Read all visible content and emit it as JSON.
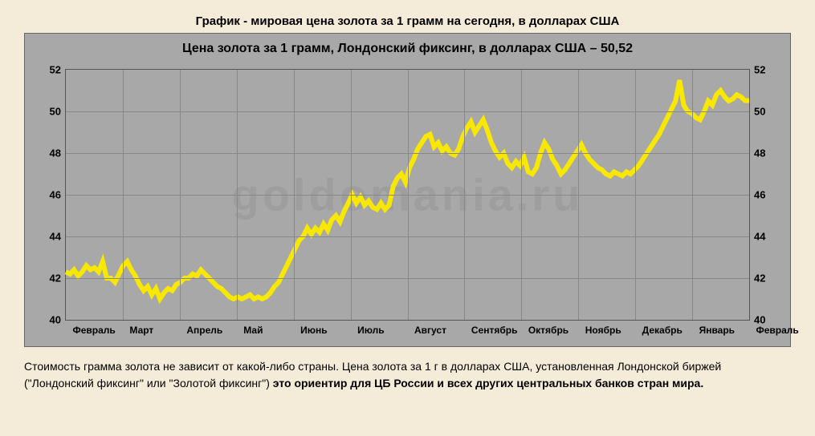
{
  "page_title": "График - мировая цена золота за 1 грамм на сегодня, в долларах США",
  "chart": {
    "type": "line",
    "inner_title": "Цена золота за 1 грамм,  Лондонский фиксинг,  в долларах США  –  50,52",
    "watermark": "goldomania.ru",
    "background_color": "#a8a8a8",
    "grid_color": "#888888",
    "line_color": "#f8e800",
    "line_width": 2,
    "ylim": [
      40,
      52
    ],
    "ytick_step": 2,
    "yticks": [
      40,
      42,
      44,
      46,
      48,
      50,
      52
    ],
    "x_labels": [
      "Февраль",
      "Март",
      "Апрель",
      "Май",
      "Июнь",
      "Июль",
      "Август",
      "Сентябрь",
      "Октябрь",
      "Ноябрь",
      "Декабрь",
      "Январь",
      "Февраль"
    ],
    "x_count": 13,
    "series": [
      42.3,
      42.2,
      42.4,
      42.1,
      42.3,
      42.6,
      42.4,
      42.5,
      42.3,
      42.8,
      42.0,
      42.0,
      41.8,
      42.2,
      42.6,
      42.8,
      42.4,
      42.1,
      41.7,
      41.4,
      41.6,
      41.2,
      41.5,
      41.0,
      41.3,
      41.5,
      41.4,
      41.7,
      41.8,
      42.0,
      42.0,
      42.2,
      42.1,
      42.4,
      42.2,
      42.0,
      41.8,
      41.6,
      41.5,
      41.3,
      41.1,
      41.0,
      41.1,
      41.0,
      41.1,
      41.2,
      41.0,
      41.1,
      41.0,
      41.1,
      41.3,
      41.6,
      41.8,
      42.2,
      42.6,
      43.0,
      43.4,
      43.8,
      44.0,
      44.4,
      44.1,
      44.4,
      44.2,
      44.6,
      44.3,
      44.8,
      45.0,
      44.7,
      45.2,
      45.6,
      46.0,
      45.6,
      45.9,
      45.5,
      45.7,
      45.4,
      45.3,
      45.6,
      45.3,
      45.5,
      46.4,
      46.8,
      47.0,
      46.6,
      47.3,
      47.7,
      48.2,
      48.5,
      48.8,
      48.9,
      48.3,
      48.5,
      48.1,
      48.3,
      48.0,
      47.9,
      48.2,
      48.8,
      49.2,
      49.5,
      49.0,
      49.3,
      49.6,
      49.1,
      48.5,
      48.1,
      47.8,
      48.0,
      47.5,
      47.3,
      47.6,
      47.4,
      47.8,
      47.1,
      47.0,
      47.3,
      48.0,
      48.5,
      48.2,
      47.7,
      47.4,
      47.0,
      47.2,
      47.5,
      47.8,
      48.1,
      48.4,
      48.0,
      47.7,
      47.5,
      47.3,
      47.2,
      47.0,
      46.9,
      47.1,
      47.0,
      46.9,
      47.1,
      47.0,
      47.2,
      47.4,
      47.7,
      48.0,
      48.3,
      48.6,
      48.9,
      49.3,
      49.7,
      50.1,
      50.5,
      51.5,
      50.3,
      50.0,
      49.9,
      49.7,
      49.6,
      50.0,
      50.5,
      50.3,
      50.8,
      51.0,
      50.7,
      50.5,
      50.6,
      50.8,
      50.7,
      50.52,
      50.52
    ]
  },
  "footer": {
    "plain1": "Стоимость грамма золота не зависит от какой-либо страны. Цена золота за 1 г в долларах США, установленная Лондонской биржей (\"Лондонский фиксинг\" или \"Золотой фиксинг\") ",
    "bold": "это ориентир для ЦБ России и всех других центральных банков стран мира."
  },
  "colors": {
    "page_bg": "#f5ebd9",
    "text": "#000000"
  },
  "fonts": {
    "title_pt": 15,
    "inner_title_pt": 16,
    "tick_pt": 13,
    "xlabel_pt": 12,
    "footer_pt": 14
  }
}
